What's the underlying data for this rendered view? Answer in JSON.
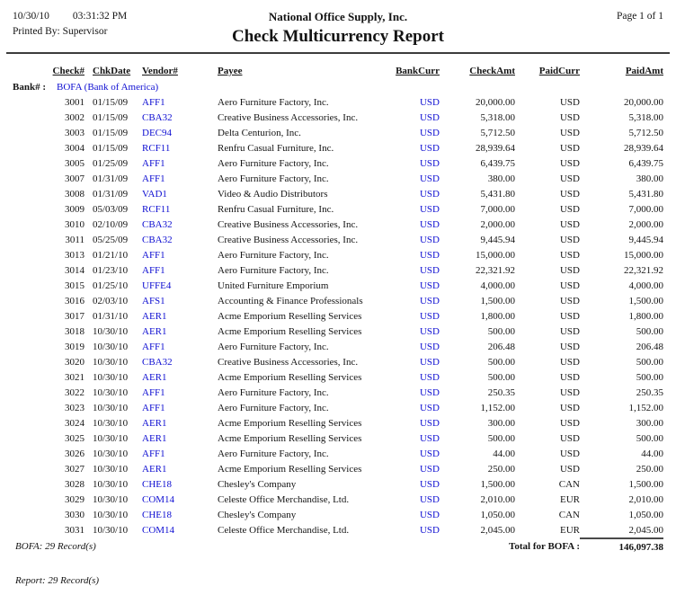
{
  "header": {
    "date": "10/30/10",
    "time": "03:31:32 PM",
    "printed_by": "Printed By: Supervisor",
    "company": "National Office Supply, Inc.",
    "title": "Check Multicurrency Report",
    "page": "Page 1 of 1"
  },
  "colors": {
    "link_blue": "#0f0fd2",
    "text": "#141414",
    "rule": "#3c3c3c"
  },
  "table": {
    "columns": [
      "Check#",
      "ChkDate",
      "Vendor#",
      "Payee",
      "BankCurr",
      "CheckAmt",
      "PaidCurr",
      "PaidAmt"
    ],
    "bank_label": "Bank# :",
    "bank_value": "BOFA (Bank of America)",
    "rows": [
      [
        "3001",
        "01/15/09",
        "AFF1",
        "Aero Furniture Factory, Inc.",
        "USD",
        "20,000.00",
        "USD",
        "20,000.00"
      ],
      [
        "3002",
        "01/15/09",
        "CBA32",
        "Creative Business Accessories, Inc.",
        "USD",
        "5,318.00",
        "USD",
        "5,318.00"
      ],
      [
        "3003",
        "01/15/09",
        "DEC94",
        "Delta Centurion, Inc.",
        "USD",
        "5,712.50",
        "USD",
        "5,712.50"
      ],
      [
        "3004",
        "01/15/09",
        "RCF11",
        "Renfru Casual Furniture, Inc.",
        "USD",
        "28,939.64",
        "USD",
        "28,939.64"
      ],
      [
        "3005",
        "01/25/09",
        "AFF1",
        "Aero Furniture Factory, Inc.",
        "USD",
        "6,439.75",
        "USD",
        "6,439.75"
      ],
      [
        "3007",
        "01/31/09",
        "AFF1",
        "Aero Furniture Factory, Inc.",
        "USD",
        "380.00",
        "USD",
        "380.00"
      ],
      [
        "3008",
        "01/31/09",
        "VAD1",
        "Video & Audio Distributors",
        "USD",
        "5,431.80",
        "USD",
        "5,431.80"
      ],
      [
        "3009",
        "05/03/09",
        "RCF11",
        "Renfru Casual Furniture, Inc.",
        "USD",
        "7,000.00",
        "USD",
        "7,000.00"
      ],
      [
        "3010",
        "02/10/09",
        "CBA32",
        "Creative Business Accessories, Inc.",
        "USD",
        "2,000.00",
        "USD",
        "2,000.00"
      ],
      [
        "3011",
        "05/25/09",
        "CBA32",
        "Creative Business Accessories, Inc.",
        "USD",
        "9,445.94",
        "USD",
        "9,445.94"
      ],
      [
        "3013",
        "01/21/10",
        "AFF1",
        "Aero Furniture Factory, Inc.",
        "USD",
        "15,000.00",
        "USD",
        "15,000.00"
      ],
      [
        "3014",
        "01/23/10",
        "AFF1",
        "Aero Furniture Factory, Inc.",
        "USD",
        "22,321.92",
        "USD",
        "22,321.92"
      ],
      [
        "3015",
        "01/25/10",
        "UFFE4",
        "United Furniture Emporium",
        "USD",
        "4,000.00",
        "USD",
        "4,000.00"
      ],
      [
        "3016",
        "02/03/10",
        "AFS1",
        "Accounting & Finance Professionals",
        "USD",
        "1,500.00",
        "USD",
        "1,500.00"
      ],
      [
        "3017",
        "01/31/10",
        "AER1",
        "Acme Emporium Reselling Services",
        "USD",
        "1,800.00",
        "USD",
        "1,800.00"
      ],
      [
        "3018",
        "10/30/10",
        "AER1",
        "Acme Emporium Reselling Services",
        "USD",
        "500.00",
        "USD",
        "500.00"
      ],
      [
        "3019",
        "10/30/10",
        "AFF1",
        "Aero Furniture Factory, Inc.",
        "USD",
        "206.48",
        "USD",
        "206.48"
      ],
      [
        "3020",
        "10/30/10",
        "CBA32",
        "Creative Business Accessories, Inc.",
        "USD",
        "500.00",
        "USD",
        "500.00"
      ],
      [
        "3021",
        "10/30/10",
        "AER1",
        "Acme Emporium Reselling Services",
        "USD",
        "500.00",
        "USD",
        "500.00"
      ],
      [
        "3022",
        "10/30/10",
        "AFF1",
        "Aero Furniture Factory, Inc.",
        "USD",
        "250.35",
        "USD",
        "250.35"
      ],
      [
        "3023",
        "10/30/10",
        "AFF1",
        "Aero Furniture Factory, Inc.",
        "USD",
        "1,152.00",
        "USD",
        "1,152.00"
      ],
      [
        "3024",
        "10/30/10",
        "AER1",
        "Acme Emporium Reselling Services",
        "USD",
        "300.00",
        "USD",
        "300.00"
      ],
      [
        "3025",
        "10/30/10",
        "AER1",
        "Acme Emporium Reselling Services",
        "USD",
        "500.00",
        "USD",
        "500.00"
      ],
      [
        "3026",
        "10/30/10",
        "AFF1",
        "Aero Furniture Factory, Inc.",
        "USD",
        "44.00",
        "USD",
        "44.00"
      ],
      [
        "3027",
        "10/30/10",
        "AER1",
        "Acme Emporium Reselling Services",
        "USD",
        "250.00",
        "USD",
        "250.00"
      ],
      [
        "3028",
        "10/30/10",
        "CHE18",
        "Chesley's Company",
        "USD",
        "1,500.00",
        "CAN",
        "1,500.00"
      ],
      [
        "3029",
        "10/30/10",
        "COM14",
        "Celeste Office Merchandise, Ltd.",
        "USD",
        "2,010.00",
        "EUR",
        "2,010.00"
      ],
      [
        "3030",
        "10/30/10",
        "CHE18",
        "Chesley's Company",
        "USD",
        "1,050.00",
        "CAN",
        "1,050.00"
      ],
      [
        "3031",
        "10/30/10",
        "COM14",
        "Celeste Office Merchandise, Ltd.",
        "USD",
        "2,045.00",
        "EUR",
        "2,045.00"
      ]
    ],
    "cell_names": [
      "check-number",
      "check-date",
      "vendor-code",
      "payee-name",
      "bank-currency",
      "check-amount",
      "paid-currency",
      "paid-amount"
    ]
  },
  "footer": {
    "bank_records": "BOFA: 29 Record(s)",
    "total_label": "Total for BOFA :",
    "total_amount": "146,097.38",
    "report_records": "Report: 29 Record(s)"
  }
}
